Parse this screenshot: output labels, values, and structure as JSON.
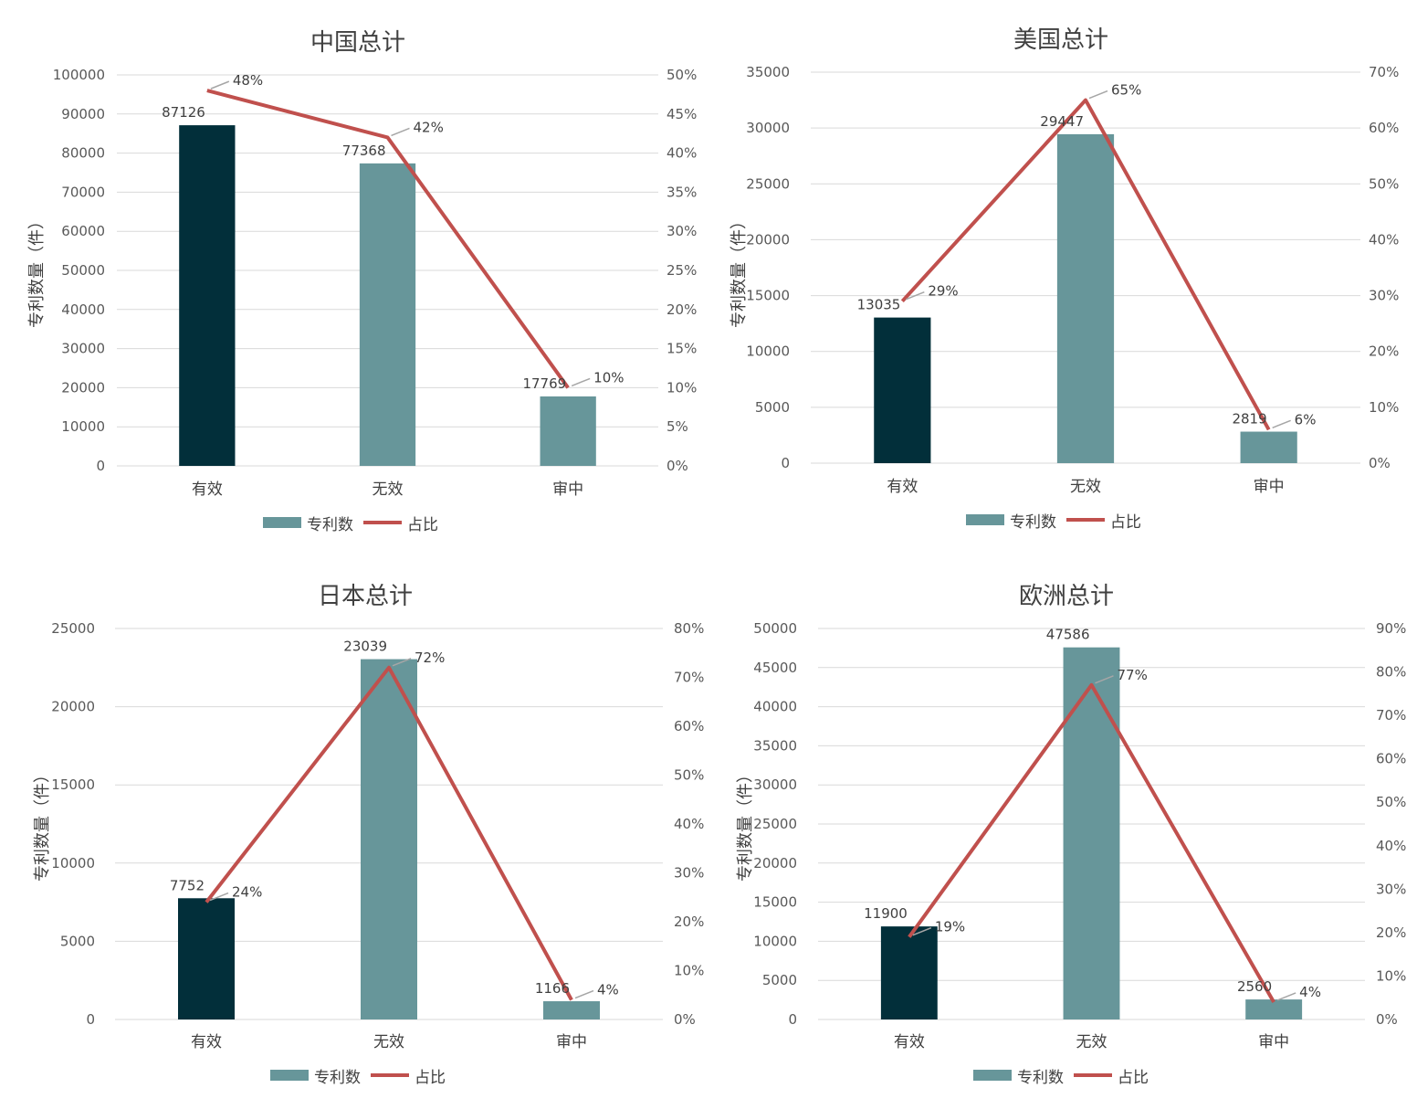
{
  "colors": {
    "bar_effective": "#022f3a",
    "bar_other": "#67969a",
    "line": "#c0504d",
    "leader": "#a6a6a6"
  },
  "chart_data": [
    {
      "type": "bar",
      "title": "中国总计",
      "ylabel": "专利数量（件）",
      "categories": [
        "有效",
        "无效",
        "审中"
      ],
      "ylim": [
        0,
        100000
      ],
      "y_ticks": [
        "0",
        "10000",
        "20000",
        "30000",
        "40000",
        "50000",
        "60000",
        "70000",
        "80000",
        "90000",
        "100000"
      ],
      "y2lim": [
        0,
        50
      ],
      "y2_ticks": [
        "0%",
        "5%",
        "10%",
        "15%",
        "20%",
        "25%",
        "30%",
        "35%",
        "40%",
        "45%",
        "50%"
      ],
      "series": [
        {
          "name": "专利数",
          "type": "bar",
          "values": [
            87126,
            77368,
            17769
          ],
          "labels": [
            "87126",
            "77368",
            "17769"
          ]
        },
        {
          "name": "占比",
          "type": "line",
          "axis": "secondary",
          "values": [
            48,
            42,
            10
          ],
          "labels": [
            "48%",
            "42%",
            "10%"
          ]
        }
      ],
      "legend": "bottom"
    },
    {
      "type": "bar",
      "title": "美国总计",
      "ylabel": "专利数量（件）",
      "categories": [
        "有效",
        "无效",
        "审中"
      ],
      "ylim": [
        0,
        35000
      ],
      "y_ticks": [
        "0",
        "5000",
        "10000",
        "15000",
        "20000",
        "25000",
        "30000",
        "35000"
      ],
      "y2lim": [
        0,
        70
      ],
      "y2_ticks": [
        "0%",
        "10%",
        "20%",
        "30%",
        "40%",
        "50%",
        "60%",
        "70%"
      ],
      "series": [
        {
          "name": "专利数",
          "type": "bar",
          "values": [
            13035,
            29447,
            2819
          ],
          "labels": [
            "13035",
            "29447",
            "2819"
          ]
        },
        {
          "name": "占比",
          "type": "line",
          "axis": "secondary",
          "values": [
            29,
            65,
            6
          ],
          "labels": [
            "29%",
            "65%",
            "6%"
          ]
        }
      ],
      "legend": "bottom"
    },
    {
      "type": "bar",
      "title": "日本总计",
      "ylabel": "专利数量（件）",
      "categories": [
        "有效",
        "无效",
        "审中"
      ],
      "ylim": [
        0,
        25000
      ],
      "y_ticks": [
        "0",
        "5000",
        "10000",
        "15000",
        "20000",
        "25000"
      ],
      "y2lim": [
        0,
        80
      ],
      "y2_ticks": [
        "0%",
        "10%",
        "20%",
        "30%",
        "40%",
        "50%",
        "60%",
        "70%",
        "80%"
      ],
      "series": [
        {
          "name": "专利数",
          "type": "bar",
          "values": [
            7752,
            23039,
            1166
          ],
          "labels": [
            "7752",
            "23039",
            "1166"
          ]
        },
        {
          "name": "占比",
          "type": "line",
          "axis": "secondary",
          "values": [
            24,
            72,
            4
          ],
          "labels": [
            "24%",
            "72%",
            "4%"
          ]
        }
      ],
      "legend": "bottom"
    },
    {
      "type": "bar",
      "title": "欧洲总计",
      "ylabel": "专利数量（件）",
      "categories": [
        "有效",
        "无效",
        "审中"
      ],
      "ylim": [
        0,
        50000
      ],
      "y_ticks": [
        "0",
        "5000",
        "10000",
        "15000",
        "20000",
        "25000",
        "30000",
        "35000",
        "40000",
        "45000",
        "50000"
      ],
      "y2lim": [
        0,
        90
      ],
      "y2_ticks": [
        "0%",
        "10%",
        "20%",
        "30%",
        "40%",
        "50%",
        "60%",
        "70%",
        "80%",
        "90%"
      ],
      "series": [
        {
          "name": "专利数",
          "type": "bar",
          "values": [
            11900,
            47586,
            2560
          ],
          "labels": [
            "11900",
            "47586",
            "2560"
          ]
        },
        {
          "name": "占比",
          "type": "line",
          "axis": "secondary",
          "values": [
            19,
            77,
            4
          ],
          "labels": [
            "19%",
            "77%",
            "4%"
          ]
        }
      ],
      "legend": "bottom"
    }
  ]
}
